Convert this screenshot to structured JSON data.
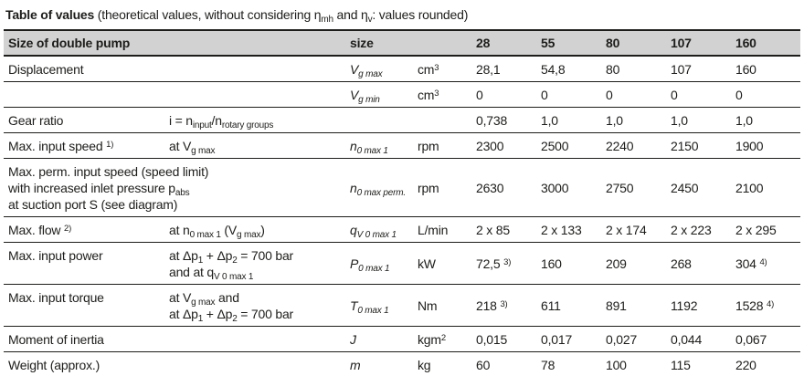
{
  "title": {
    "bold": "Table of values",
    "rest": " (theoretical values, without considering η~mh~ and η~v~: values rounded)"
  },
  "header": {
    "label": "Size of double pump",
    "size_label": "size",
    "unit_label": "",
    "sizes": [
      "28",
      "55",
      "80",
      "107",
      "160"
    ]
  },
  "rows": [
    {
      "label": "Displacement",
      "condition": "",
      "symbol": "V~g max~",
      "unit": "cm^3^",
      "values": [
        "28,1",
        "54,8",
        "80",
        "107",
        "160"
      ]
    },
    {
      "label": "",
      "condition": "",
      "symbol": "V~g min~",
      "unit": "cm^3^",
      "values": [
        "0",
        "0",
        "0",
        "0",
        "0"
      ]
    },
    {
      "label": "Gear ratio",
      "condition": "i = n~input~/n~rotary groups~",
      "symbol": "",
      "unit": "",
      "values": [
        "0,738",
        "1,0",
        "1,0",
        "1,0",
        "1,0"
      ]
    },
    {
      "label": "Max. input speed ^1)^",
      "condition": "at V~g max~",
      "symbol": "n~0 max 1~",
      "unit": "rpm",
      "values": [
        "2300",
        "2500",
        "2240",
        "2150",
        "1900"
      ]
    },
    {
      "label": "Max. perm. input speed (speed limit)\nwith increased inlet pressure p~abs~\nat suction port S (see diagram)",
      "condition": "",
      "symbol": "n~0 max perm.~",
      "unit": "rpm",
      "values": [
        "2630",
        "3000",
        "2750",
        "2450",
        "2100"
      ]
    },
    {
      "label": "Max. flow ^2)^",
      "condition": "at n~0 max 1~ (V~g max~)",
      "symbol": "q~V 0 max 1~",
      "unit": "L/min",
      "values": [
        "2 x 85",
        "2 x 133",
        "2 x 174",
        "2 x 223",
        "2 x 295"
      ]
    },
    {
      "label": "Max. input power",
      "condition": "at Δp~1~ + Δp~2~ = 700 bar\nand at q~V 0 max 1~",
      "symbol": "P~0 max 1~",
      "unit": "kW",
      "values": [
        "72,5 ^3)^",
        "160",
        "209",
        "268",
        "304 ^4)^"
      ]
    },
    {
      "label": "Max. input torque",
      "condition": "at V~g max~ and\nat Δp~1~ + Δp~2~ = 700 bar",
      "symbol": "T~0 max 1~",
      "unit": "Nm",
      "values": [
        "218 ^3)^",
        "611",
        "891",
        "1192",
        "1528 ^4)^"
      ]
    },
    {
      "label": "Moment of inertia",
      "condition": "",
      "symbol": "J",
      "unit": "kgm^2^",
      "values": [
        "0,015",
        "0,017",
        "0,027",
        "0,044",
        "0,067"
      ]
    },
    {
      "label": "Weight (approx.)",
      "condition": "",
      "symbol": "m",
      "unit": "kg",
      "values": [
        "60",
        "78",
        "100",
        "115",
        "220"
      ]
    }
  ],
  "colors": {
    "header_background": "#d2d2d2",
    "text": "#1d1d1b",
    "rule_line": "#1d1d1b"
  }
}
